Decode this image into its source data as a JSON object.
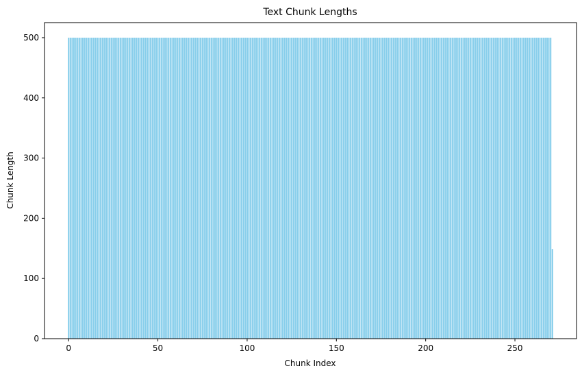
{
  "chart_data": {
    "type": "bar",
    "title": "Text Chunk Lengths",
    "xlabel": "Chunk Index",
    "ylabel": "Chunk Length",
    "bar_color": "#87ceeb",
    "x_start": 0,
    "full_value": 500,
    "full_count": 271,
    "last_index": 271,
    "last_value": 149,
    "xlim": [
      -13.5,
      284.5
    ],
    "ylim": [
      0,
      525
    ],
    "xticks": [
      0,
      50,
      100,
      150,
      200,
      250
    ],
    "yticks": [
      0,
      100,
      200,
      300,
      400,
      500
    ],
    "grid": false,
    "legend": "none"
  }
}
